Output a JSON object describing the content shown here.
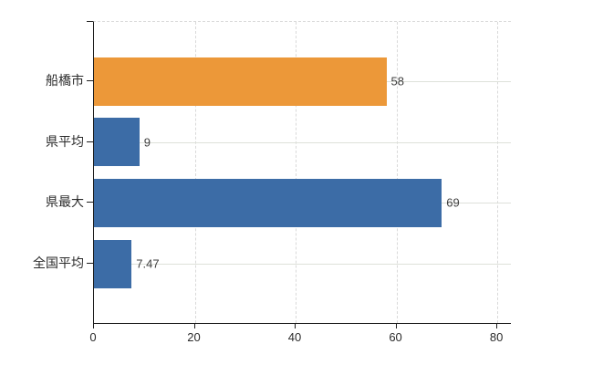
{
  "chart_data": {
    "type": "bar",
    "orientation": "horizontal",
    "title": "",
    "xlabel": "",
    "ylabel": "",
    "categories": [
      "船橋市",
      "県平均",
      "県最大",
      "全国平均"
    ],
    "values": [
      58,
      9,
      69,
      7.47
    ],
    "value_labels": [
      "58",
      "9",
      "69",
      "7.47"
    ],
    "bar_colors": [
      "#EC9839",
      "#3C6CA6",
      "#3C6CA6",
      "#3C6CA6"
    ],
    "x_ticks": [
      0,
      20,
      40,
      60,
      80
    ],
    "x_tick_labels": [
      "0",
      "20",
      "40",
      "60",
      "80"
    ],
    "xlim": [
      0,
      82.7
    ],
    "grid": true,
    "legend_position": "none",
    "colors": {
      "highlight_bar": "#EC9839",
      "default_bar": "#3C6CA6",
      "gridline_vertical": "#D9D9D9",
      "gridline_horizontal": "#DEE1DA",
      "axis": "#1C1C1C",
      "text": "#2B2B2B",
      "background": "#FFFFFF"
    }
  }
}
